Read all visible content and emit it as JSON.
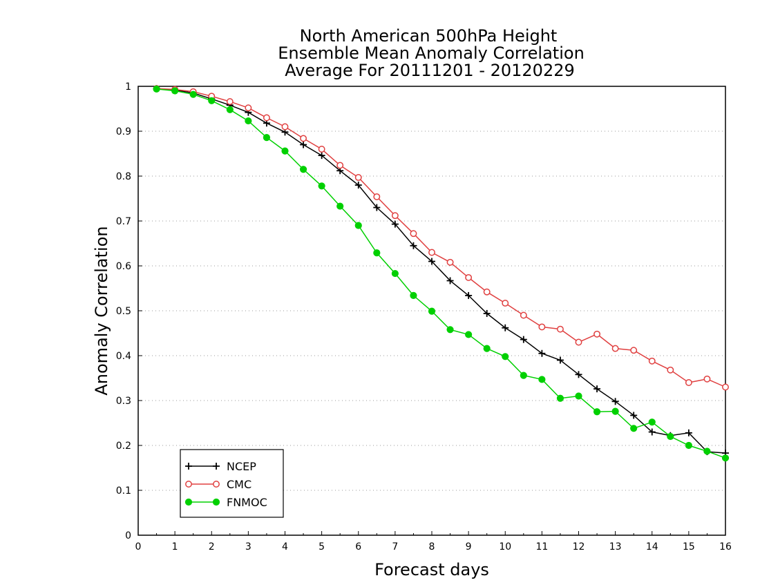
{
  "chart_data": {
    "type": "line",
    "title": [
      "North American 500hPa Height",
      "Ensemble Mean Anomaly Correlation",
      "Average For 20111201 - 20120229"
    ],
    "xlabel": "Forecast days",
    "ylabel": "Anomaly Correlation",
    "xlim": [
      0,
      16
    ],
    "ylim": [
      0,
      1
    ],
    "xticks": [
      "0",
      "1",
      "2",
      "3",
      "4",
      "5",
      "6",
      "7",
      "8",
      "9",
      "10",
      "11",
      "12",
      "13",
      "14",
      "15",
      "16"
    ],
    "yticks": [
      "0",
      "0.1",
      "0.2",
      "0.3",
      "0.4",
      "0.5",
      "0.6",
      "0.7",
      "0.8",
      "0.9",
      "1"
    ],
    "grid": "horizontal-dotted",
    "legend_position": "bottom-left",
    "x": [
      0.5,
      1,
      1.5,
      2,
      2.5,
      3,
      3.5,
      4,
      4.5,
      5,
      5.5,
      6,
      6.5,
      7,
      7.5,
      8,
      8.5,
      9,
      9.5,
      10,
      10.5,
      11,
      11.5,
      12,
      12.5,
      13,
      13.5,
      14,
      14.5,
      15,
      15.5,
      16
    ],
    "series": [
      {
        "name": "NCEP",
        "color": "#000000",
        "marker": "plus",
        "values": [
          0.995,
          0.992,
          0.985,
          0.972,
          0.958,
          0.942,
          0.918,
          0.898,
          0.87,
          0.846,
          0.812,
          0.78,
          0.73,
          0.693,
          0.645,
          0.61,
          0.567,
          0.534,
          0.494,
          0.462,
          0.436,
          0.405,
          0.39,
          0.358,
          0.326,
          0.298,
          0.267,
          0.23,
          0.222,
          0.228,
          0.186,
          0.183
        ]
      },
      {
        "name": "CMC",
        "color": "#e04040",
        "marker": "open-circle",
        "values": [
          0.995,
          0.993,
          0.988,
          0.978,
          0.966,
          0.952,
          0.93,
          0.91,
          0.884,
          0.86,
          0.824,
          0.797,
          0.754,
          0.712,
          0.672,
          0.63,
          0.608,
          0.574,
          0.542,
          0.517,
          0.49,
          0.464,
          0.459,
          0.43,
          0.448,
          0.416,
          0.412,
          0.388,
          0.368,
          0.34,
          0.348,
          0.33
        ]
      },
      {
        "name": "FNMOC",
        "color": "#00d000",
        "marker": "filled-circle",
        "values": [
          0.994,
          0.99,
          0.982,
          0.968,
          0.948,
          0.923,
          0.886,
          0.856,
          0.815,
          0.778,
          0.733,
          0.69,
          0.629,
          0.583,
          0.534,
          0.499,
          0.458,
          0.447,
          0.416,
          0.398,
          0.356,
          0.347,
          0.305,
          0.31,
          0.275,
          0.276,
          0.238,
          0.252,
          0.22,
          0.2,
          0.187,
          0.172
        ]
      }
    ]
  }
}
